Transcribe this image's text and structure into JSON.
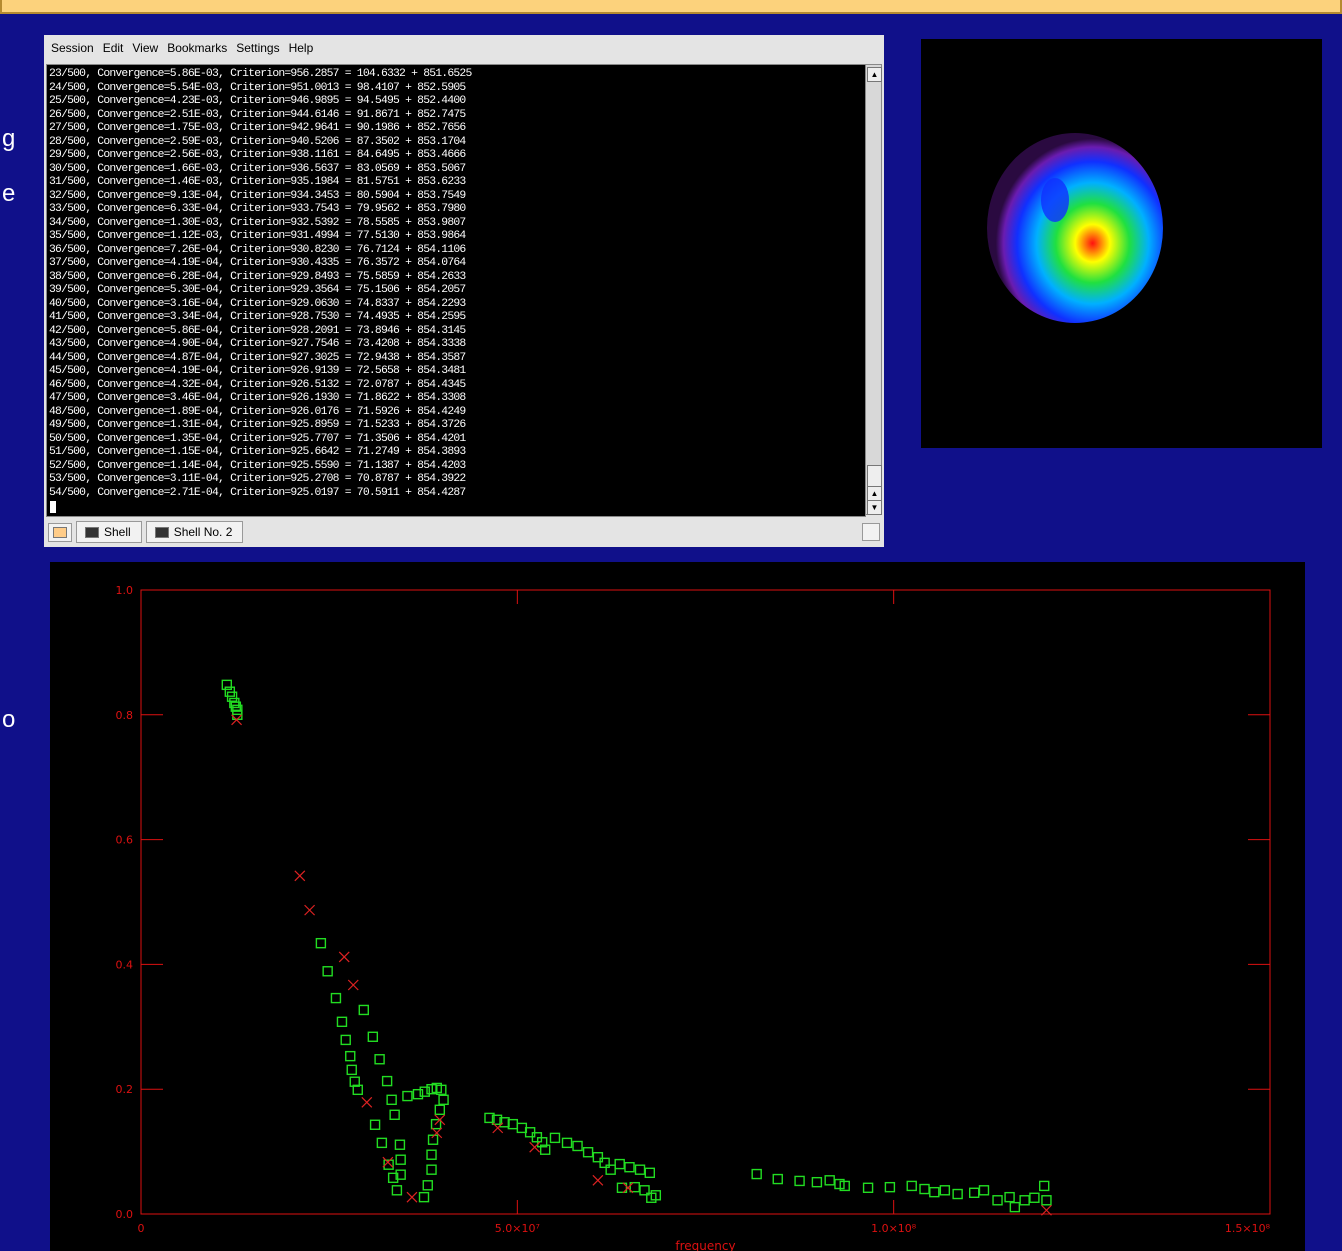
{
  "slide_text_fragments": [
    "g",
    "e",
    "o"
  ],
  "terminal": {
    "menu": [
      "Session",
      "Edit",
      "View",
      "Bookmarks",
      "Settings",
      "Help"
    ],
    "lines": [
      "23/500, Convergence=5.86E-03, Criterion=956.2857 = 104.6332 + 851.6525",
      "24/500, Convergence=5.54E-03, Criterion=951.0013 = 98.4107 + 852.5905",
      "25/500, Convergence=4.23E-03, Criterion=946.9895 = 94.5495 + 852.4400",
      "26/500, Convergence=2.51E-03, Criterion=944.6146 = 91.8671 + 852.7475",
      "27/500, Convergence=1.75E-03, Criterion=942.9641 = 90.1986 + 852.7656",
      "28/500, Convergence=2.59E-03, Criterion=940.5206 = 87.3502 + 853.1704",
      "29/500, Convergence=2.56E-03, Criterion=938.1161 = 84.6495 + 853.4666",
      "30/500, Convergence=1.66E-03, Criterion=936.5637 = 83.0569 + 853.5067",
      "31/500, Convergence=1.46E-03, Criterion=935.1984 = 81.5751 + 853.6233",
      "32/500, Convergence=9.13E-04, Criterion=934.3453 = 80.5904 + 853.7549",
      "33/500, Convergence=6.33E-04, Criterion=933.7543 = 79.9562 + 853.7980",
      "34/500, Convergence=1.30E-03, Criterion=932.5392 = 78.5585 + 853.9807",
      "35/500, Convergence=1.12E-03, Criterion=931.4994 = 77.5130 + 853.9864",
      "36/500, Convergence=7.26E-04, Criterion=930.8230 = 76.7124 + 854.1106",
      "37/500, Convergence=4.19E-04, Criterion=930.4335 = 76.3572 + 854.0764",
      "38/500, Convergence=6.28E-04, Criterion=929.8493 = 75.5859 + 854.2633",
      "39/500, Convergence=5.30E-04, Criterion=929.3564 = 75.1506 + 854.2057",
      "40/500, Convergence=3.16E-04, Criterion=929.0630 = 74.8337 + 854.2293",
      "41/500, Convergence=3.34E-04, Criterion=928.7530 = 74.4935 + 854.2595",
      "42/500, Convergence=5.86E-04, Criterion=928.2091 = 73.8946 + 854.3145",
      "43/500, Convergence=4.90E-04, Criterion=927.7546 = 73.4208 + 854.3338",
      "44/500, Convergence=4.87E-04, Criterion=927.3025 = 72.9438 + 854.3587",
      "45/500, Convergence=4.19E-04, Criterion=926.9139 = 72.5658 + 854.3481",
      "46/500, Convergence=4.32E-04, Criterion=926.5132 = 72.0787 + 854.4345",
      "47/500, Convergence=3.46E-04, Criterion=926.1930 = 71.8622 + 854.3308",
      "48/500, Convergence=1.89E-04, Criterion=926.0176 = 71.5926 + 854.4249",
      "49/500, Convergence=1.31E-04, Criterion=925.8959 = 71.5233 + 854.3726",
      "50/500, Convergence=1.35E-04, Criterion=925.7707 = 71.3506 + 854.4201",
      "51/500, Convergence=1.15E-04, Criterion=925.6642 = 71.2749 + 854.3893",
      "52/500, Convergence=1.14E-04, Criterion=925.5590 = 71.1387 + 854.4203",
      "53/500, Convergence=3.11E-04, Criterion=925.2708 = 70.8787 + 854.3922",
      "54/500, Convergence=2.71E-04, Criterion=925.0197 = 70.5911 + 854.4287"
    ],
    "tabs": [
      "Shell",
      "Shell No. 2"
    ]
  },
  "chart_data": {
    "type": "scatter",
    "x_label": "frequency",
    "xlim": [
      0,
      150000000
    ],
    "ylim": [
      0,
      1
    ],
    "xticks": [
      0,
      {
        "value": 50000000,
        "label": "5.0×10⁷"
      },
      {
        "value": 100000000,
        "label": "1.0×10⁸"
      },
      {
        "value": 150000000,
        "label": "1.5×10⁸"
      }
    ],
    "yticks": [
      {
        "value": 0,
        "label": "0.0"
      },
      0.2,
      0.4,
      0.6,
      0.8,
      {
        "value": 1,
        "label": "1.0"
      }
    ],
    "axis_color": "#dd1111",
    "series": [
      {
        "marker": "square",
        "color": "#22dd22",
        "x": [
          11400000,
          11800000,
          12100000,
          12400000,
          12600000,
          12800000,
          12800000,
          23900000,
          24800000,
          25900000,
          26700000,
          27200000,
          27800000,
          28000000,
          28400000,
          28800000,
          29600000,
          30800000,
          31700000,
          32700000,
          33300000,
          33700000,
          31100000,
          32000000,
          32900000,
          33500000,
          34000000,
          34400000,
          34500000,
          34500000,
          35400000,
          36800000,
          37700000,
          38600000,
          39300000,
          39900000,
          40200000,
          39700000,
          39200000,
          38800000,
          38600000,
          38600000,
          38100000,
          37600000,
          46300000,
          47300000,
          48300000,
          49400000,
          50600000,
          51700000,
          52600000,
          53300000,
          53700000,
          55000000,
          56600000,
          58000000,
          59400000,
          60700000,
          61600000,
          62400000,
          63600000,
          64900000,
          66300000,
          67600000,
          63900000,
          65600000,
          66900000,
          67800000,
          68400000,
          81800000,
          84600000,
          87500000,
          89800000,
          91500000,
          92800000,
          93500000,
          96600000,
          99500000,
          102400000,
          104100000,
          105400000,
          106800000,
          108500000,
          110700000,
          112000000,
          113800000,
          115400000,
          116100000,
          117400000,
          118700000,
          120000000,
          120300000
        ],
        "values": [
          0.848,
          0.837,
          0.829,
          0.819,
          0.813,
          0.808,
          0.8,
          0.434,
          0.389,
          0.346,
          0.308,
          0.279,
          0.253,
          0.231,
          0.212,
          0.199,
          0.327,
          0.284,
          0.248,
          0.213,
          0.183,
          0.159,
          0.143,
          0.114,
          0.079,
          0.058,
          0.038,
          0.111,
          0.087,
          0.063,
          0.189,
          0.192,
          0.196,
          0.2,
          0.202,
          0.199,
          0.183,
          0.167,
          0.144,
          0.119,
          0.095,
          0.071,
          0.046,
          0.027,
          0.154,
          0.151,
          0.147,
          0.144,
          0.138,
          0.131,
          0.123,
          0.115,
          0.103,
          0.122,
          0.114,
          0.109,
          0.099,
          0.091,
          0.082,
          0.071,
          0.08,
          0.075,
          0.071,
          0.066,
          0.042,
          0.043,
          0.038,
          0.026,
          0.03,
          0.064,
          0.056,
          0.053,
          0.051,
          0.054,
          0.048,
          0.045,
          0.042,
          0.043,
          0.045,
          0.04,
          0.035,
          0.038,
          0.032,
          0.034,
          0.038,
          0.022,
          0.027,
          0.011,
          0.022,
          0.026,
          0.045,
          0.022
        ]
      },
      {
        "marker": "cross",
        "color": "#dd2222",
        "x": [
          12700000,
          21100000,
          22400000,
          27000000,
          28200000,
          30000000,
          32800000,
          36000000,
          39700000,
          39300000,
          47400000,
          52300000,
          60700000,
          64700000,
          120300000
        ],
        "values": [
          0.792,
          0.542,
          0.487,
          0.412,
          0.367,
          0.179,
          0.083,
          0.027,
          0.151,
          0.13,
          0.138,
          0.107,
          0.054,
          0.042,
          0.006
        ]
      }
    ]
  }
}
